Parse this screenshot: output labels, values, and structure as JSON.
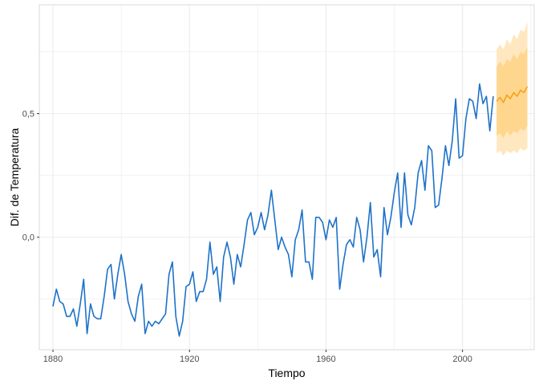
{
  "chart_data": {
    "type": "line",
    "title": "",
    "xlabel": "Tiempo",
    "ylabel": "Dif. de Temperatura",
    "xlim": [
      1876,
      2021
    ],
    "ylim": [
      -0.455,
      0.94
    ],
    "x_ticks": [
      1880,
      1920,
      1960,
      2000
    ],
    "y_ticks": [
      0.0,
      0.5
    ],
    "y_tick_labels": [
      "0,0",
      "0,5"
    ],
    "grid": true,
    "colors": {
      "observed": "#1e72c8",
      "forecast": "#f5a21b",
      "band80": "#ffd68e",
      "band95": "#ffe7bf",
      "grid": "#ebebeb",
      "panel_border": "#d9d9d9"
    },
    "series": [
      {
        "values": [
          [
            1880,
            -0.28
          ],
          [
            1881,
            -0.21
          ],
          [
            1882,
            -0.26
          ],
          [
            1883,
            -0.27
          ],
          [
            1884,
            -0.32
          ],
          [
            1885,
            -0.32
          ],
          [
            1886,
            -0.29
          ],
          [
            1887,
            -0.36
          ],
          [
            1888,
            -0.27
          ],
          [
            1889,
            -0.17
          ],
          [
            1890,
            -0.39
          ],
          [
            1891,
            -0.27
          ],
          [
            1892,
            -0.32
          ],
          [
            1893,
            -0.33
          ],
          [
            1894,
            -0.33
          ],
          [
            1895,
            -0.24
          ],
          [
            1896,
            -0.13
          ],
          [
            1897,
            -0.11
          ],
          [
            1898,
            -0.25
          ],
          [
            1899,
            -0.15
          ],
          [
            1900,
            -0.07
          ],
          [
            1901,
            -0.15
          ],
          [
            1902,
            -0.26
          ],
          [
            1903,
            -0.31
          ],
          [
            1904,
            -0.34
          ],
          [
            1905,
            -0.24
          ],
          [
            1906,
            -0.19
          ],
          [
            1907,
            -0.39
          ],
          [
            1908,
            -0.34
          ],
          [
            1909,
            -0.36
          ],
          [
            1910,
            -0.34
          ],
          [
            1911,
            -0.35
          ],
          [
            1912,
            -0.33
          ],
          [
            1913,
            -0.31
          ],
          [
            1914,
            -0.15
          ],
          [
            1915,
            -0.1
          ],
          [
            1916,
            -0.32
          ],
          [
            1917,
            -0.4
          ],
          [
            1918,
            -0.34
          ],
          [
            1919,
            -0.2
          ],
          [
            1920,
            -0.19
          ],
          [
            1921,
            -0.14
          ],
          [
            1922,
            -0.26
          ],
          [
            1923,
            -0.22
          ],
          [
            1924,
            -0.22
          ],
          [
            1925,
            -0.17
          ],
          [
            1926,
            -0.02
          ],
          [
            1927,
            -0.15
          ],
          [
            1928,
            -0.12
          ],
          [
            1929,
            -0.26
          ],
          [
            1930,
            -0.08
          ],
          [
            1931,
            -0.02
          ],
          [
            1932,
            -0.08
          ],
          [
            1933,
            -0.19
          ],
          [
            1934,
            -0.07
          ],
          [
            1935,
            -0.12
          ],
          [
            1936,
            -0.03
          ],
          [
            1937,
            0.07
          ],
          [
            1938,
            0.1
          ],
          [
            1939,
            0.01
          ],
          [
            1940,
            0.04
          ],
          [
            1941,
            0.1
          ],
          [
            1942,
            0.03
          ],
          [
            1943,
            0.09
          ],
          [
            1944,
            0.19
          ],
          [
            1945,
            0.07
          ],
          [
            1946,
            -0.05
          ],
          [
            1947,
            0.0
          ],
          [
            1948,
            -0.04
          ],
          [
            1949,
            -0.07
          ],
          [
            1950,
            -0.16
          ],
          [
            1951,
            -0.01
          ],
          [
            1952,
            0.03
          ],
          [
            1953,
            0.11
          ],
          [
            1954,
            -0.1
          ],
          [
            1955,
            -0.1
          ],
          [
            1956,
            -0.17
          ],
          [
            1957,
            0.08
          ],
          [
            1958,
            0.08
          ],
          [
            1959,
            0.06
          ],
          [
            1960,
            -0.01
          ],
          [
            1961,
            0.07
          ],
          [
            1962,
            0.04
          ],
          [
            1963,
            0.08
          ],
          [
            1964,
            -0.21
          ],
          [
            1965,
            -0.11
          ],
          [
            1966,
            -0.03
          ],
          [
            1967,
            -0.01
          ],
          [
            1968,
            -0.04
          ],
          [
            1969,
            0.08
          ],
          [
            1970,
            0.03
          ],
          [
            1971,
            -0.1
          ],
          [
            1972,
            0.0
          ],
          [
            1973,
            0.14
          ],
          [
            1974,
            -0.08
          ],
          [
            1975,
            -0.05
          ],
          [
            1976,
            -0.16
          ],
          [
            1977,
            0.12
          ],
          [
            1978,
            0.01
          ],
          [
            1979,
            0.08
          ],
          [
            1980,
            0.18
          ],
          [
            1981,
            0.26
          ],
          [
            1982,
            0.04
          ],
          [
            1983,
            0.26
          ],
          [
            1984,
            0.09
          ],
          [
            1985,
            0.05
          ],
          [
            1986,
            0.12
          ],
          [
            1987,
            0.26
          ],
          [
            1988,
            0.31
          ],
          [
            1989,
            0.19
          ],
          [
            1990,
            0.37
          ],
          [
            1991,
            0.35
          ],
          [
            1992,
            0.12
          ],
          [
            1993,
            0.13
          ],
          [
            1994,
            0.24
          ],
          [
            1995,
            0.37
          ],
          [
            1996,
            0.29
          ],
          [
            1997,
            0.39
          ],
          [
            1998,
            0.56
          ],
          [
            1999,
            0.32
          ],
          [
            2000,
            0.33
          ],
          [
            2001,
            0.48
          ],
          [
            2002,
            0.56
          ],
          [
            2003,
            0.55
          ],
          [
            2004,
            0.48
          ],
          [
            2005,
            0.62
          ],
          [
            2006,
            0.54
          ],
          [
            2007,
            0.57
          ],
          [
            2008,
            0.43
          ],
          [
            2009,
            0.57
          ]
        ]
      },
      {
        "values": [
          [
            2010,
            0.55
          ],
          [
            2011,
            0.565
          ],
          [
            2012,
            0.545
          ],
          [
            2013,
            0.575
          ],
          [
            2014,
            0.56
          ],
          [
            2015,
            0.585
          ],
          [
            2016,
            0.57
          ],
          [
            2017,
            0.595
          ],
          [
            2018,
            0.585
          ],
          [
            2019,
            0.61
          ]
        ],
        "interval_80": [
          [
            2010,
            0.41,
            0.69
          ],
          [
            2011,
            0.42,
            0.71
          ],
          [
            2012,
            0.4,
            0.69
          ],
          [
            2013,
            0.43,
            0.72
          ],
          [
            2014,
            0.41,
            0.71
          ],
          [
            2015,
            0.43,
            0.74
          ],
          [
            2016,
            0.42,
            0.72
          ],
          [
            2017,
            0.44,
            0.75
          ],
          [
            2018,
            0.43,
            0.74
          ],
          [
            2019,
            0.45,
            0.77
          ]
        ],
        "interval_95": [
          [
            2010,
            0.34,
            0.76
          ],
          [
            2011,
            0.35,
            0.78
          ],
          [
            2012,
            0.33,
            0.76
          ],
          [
            2013,
            0.35,
            0.8
          ],
          [
            2014,
            0.34,
            0.78
          ],
          [
            2015,
            0.35,
            0.82
          ],
          [
            2016,
            0.34,
            0.8
          ],
          [
            2017,
            0.36,
            0.84
          ],
          [
            2018,
            0.35,
            0.83
          ],
          [
            2019,
            0.36,
            0.87
          ]
        ]
      }
    ]
  }
}
